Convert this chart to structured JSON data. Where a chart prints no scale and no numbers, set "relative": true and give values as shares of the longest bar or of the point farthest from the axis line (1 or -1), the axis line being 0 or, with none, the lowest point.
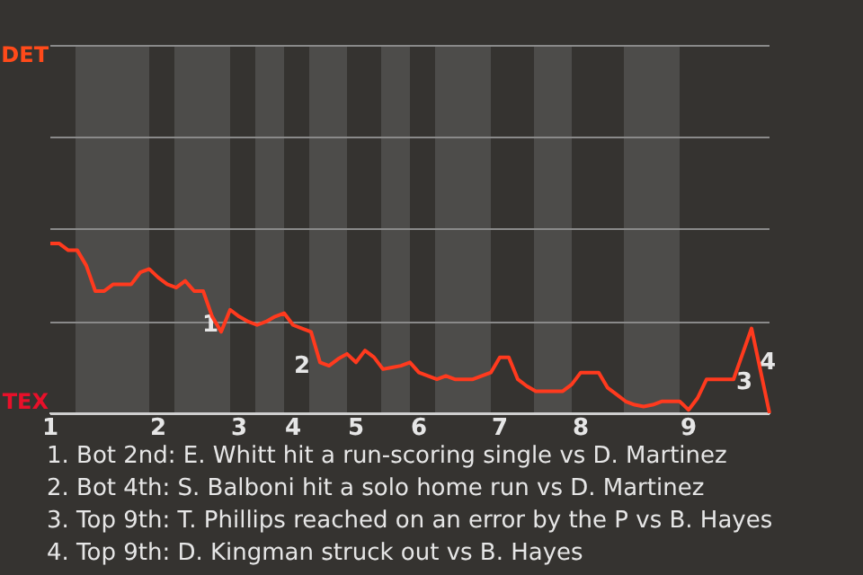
{
  "chart_data": {
    "type": "line",
    "categories": [
      "1",
      null,
      null,
      null,
      null,
      null,
      null,
      null,
      null,
      null,
      null,
      null,
      "2",
      null,
      null,
      null,
      null,
      null,
      null,
      null,
      null,
      "3",
      null,
      null,
      null,
      null,
      null,
      "4",
      null,
      null,
      null,
      null,
      null,
      null,
      "5",
      null,
      null,
      null,
      null,
      null,
      null,
      "6",
      null,
      null,
      null,
      null,
      null,
      null,
      null,
      null,
      "7",
      null,
      null,
      null,
      null,
      null,
      null,
      null,
      null,
      "8",
      null,
      null,
      null,
      null,
      null,
      null,
      null,
      null,
      null,
      null,
      null,
      "9",
      null,
      null,
      null,
      null,
      null,
      null,
      null,
      null,
      null
    ],
    "series": [
      {
        "color": "#ff3a1e",
        "values": [
          1.0,
          1.0,
          0.96,
          0.96,
          0.87,
          0.72,
          0.72,
          0.76,
          0.76,
          0.76,
          0.83,
          0.85,
          0.8,
          0.76,
          0.74,
          0.78,
          0.72,
          0.72,
          0.57,
          0.48,
          0.61,
          0.57,
          0.54,
          0.52,
          0.54,
          0.57,
          0.59,
          0.52,
          0.5,
          0.48,
          0.3,
          0.28,
          0.32,
          0.35,
          0.3,
          0.37,
          0.33,
          0.26,
          0.27,
          0.28,
          0.3,
          0.24,
          0.22,
          0.2,
          0.22,
          0.2,
          0.2,
          0.2,
          0.22,
          0.24,
          0.33,
          0.33,
          0.2,
          0.16,
          0.13,
          0.13,
          0.13,
          0.13,
          0.17,
          0.24,
          0.24,
          0.24,
          0.15,
          0.11,
          0.07,
          0.05,
          0.04,
          0.05,
          0.07,
          0.07,
          0.07,
          0.02,
          0.09,
          0.2,
          0.2,
          0.2,
          0.2,
          0.35,
          0.5,
          0.25,
          0
        ]
      }
    ],
    "relative": true,
    "marker": "none",
    "ref_lines": [
      {
        "axis": "y",
        "value": 0,
        "label": "TEX",
        "color": "#cfcfcf"
      },
      {
        "axis": "y",
        "value": 0.54,
        "color": "#8a8a8a"
      },
      {
        "axis": "y",
        "value": 1.09,
        "color": "#8a8a8a"
      },
      {
        "axis": "y",
        "value": 1.63,
        "color": "#8a8a8a"
      },
      {
        "axis": "y",
        "value": 2.17,
        "label": "DET",
        "color": "#8a8a8a"
      }
    ],
    "annotations": [
      "1",
      "2",
      "3",
      "4",
      "1. Bot 2nd: E. Whitt hit a run-scoring single vs D. Martinez",
      "2. Bot 4th: S. Balboni hit a solo home run vs D. Martinez",
      "3. Top 9th: T. Phillips reached on an error by the P vs B. Hayes",
      "4. Top 9th: D. Kingman struck out vs B. Hayes"
    ]
  }
}
